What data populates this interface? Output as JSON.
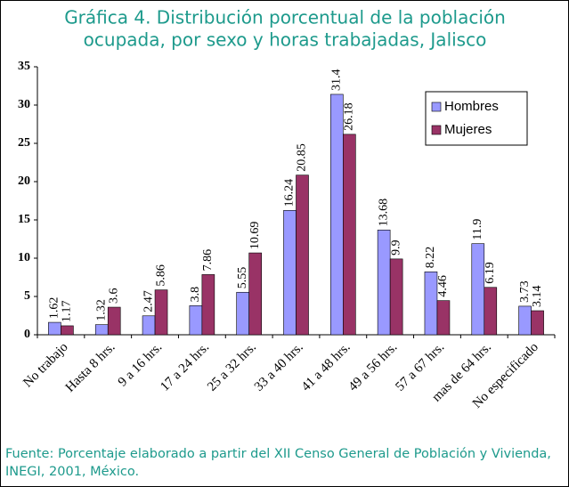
{
  "chart_data": {
    "type": "bar",
    "title": [
      "Gráfica 4. Distribución porcentual de la población",
      "ocupada, por sexo y horas trabajadas, Jalisco"
    ],
    "categories": [
      "No trabajo",
      "Hasta 8 hrs.",
      "9 a 16 hrs.",
      "17 a 24 hrs.",
      "25 a 32 hrs.",
      "33 a 40 hrs.",
      "41 a 48 hrs.",
      "49 a 56 hrs.",
      "57 a 67 hrs.",
      "mas de 64 hrs.",
      "No especificado"
    ],
    "series": [
      {
        "name": "Hombres",
        "color": "#9999ff",
        "values": [
          1.62,
          1.32,
          2.47,
          3.8,
          5.55,
          16.24,
          31.4,
          13.68,
          8.22,
          11.9,
          3.73
        ]
      },
      {
        "name": "Mujeres",
        "color": "#993366",
        "values": [
          1.17,
          3.6,
          5.86,
          7.86,
          10.69,
          20.85,
          26.18,
          9.9,
          4.46,
          6.19,
          3.14
        ]
      }
    ],
    "ylim": [
      0,
      35
    ],
    "yticks": [
      0,
      5,
      10,
      15,
      20,
      25,
      30,
      35
    ],
    "grid": false,
    "legend": "upper right",
    "source": "Fuente: Porcentaje elaborado a partir del XII Censo General de Población y Vivienda, INEGI, 2001, México."
  }
}
